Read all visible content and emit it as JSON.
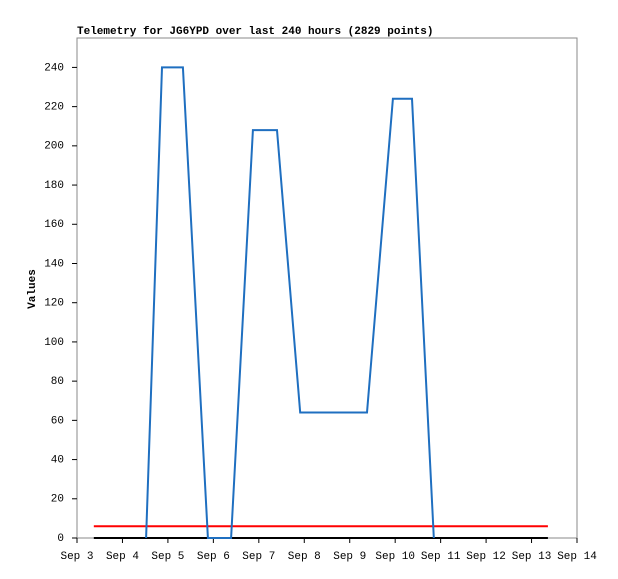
{
  "chart_data": {
    "type": "line",
    "title": "Telemetry for JG6YPD over last 240 hours (2829 points)",
    "y_label": "Values",
    "series": [
      {
        "color": "#000000",
        "x": [
          3.37,
          13.36
        ],
        "values": [
          0,
          0
        ]
      },
      {
        "color": "#ff0000",
        "x": [
          3.37,
          13.36
        ],
        "values": [
          6,
          6
        ]
      },
      {
        "color": "#1f6fc0",
        "x": [
          4.52,
          4.87,
          5.33,
          5.88,
          6.39,
          6.87,
          7.4,
          7.91,
          9.38,
          9.95,
          10.37,
          10.85
        ],
        "values": [
          0,
          240,
          240,
          0,
          0,
          208,
          208,
          64,
          64,
          224,
          224,
          0
        ]
      }
    ],
    "xlim": [
      3,
      14
    ],
    "xticks": [
      {
        "value": 3,
        "label": "Sep 3"
      },
      {
        "value": 4,
        "label": "Sep 4"
      },
      {
        "value": 5,
        "label": "Sep 5"
      },
      {
        "value": 6,
        "label": "Sep 6"
      },
      {
        "value": 7,
        "label": "Sep 7"
      },
      {
        "value": 8,
        "label": "Sep 8"
      },
      {
        "value": 9,
        "label": "Sep 9"
      },
      {
        "value": 10,
        "label": "Sep 10"
      },
      {
        "value": 11,
        "label": "Sep 11"
      },
      {
        "value": 12,
        "label": "Sep 12"
      },
      {
        "value": 13,
        "label": "Sep 13"
      },
      {
        "value": 14,
        "label": "Sep 14"
      }
    ],
    "ylim": [
      0,
      255
    ],
    "yticks": [
      0,
      20,
      40,
      60,
      80,
      100,
      120,
      140,
      160,
      180,
      200,
      220,
      240
    ],
    "grid": false
  }
}
